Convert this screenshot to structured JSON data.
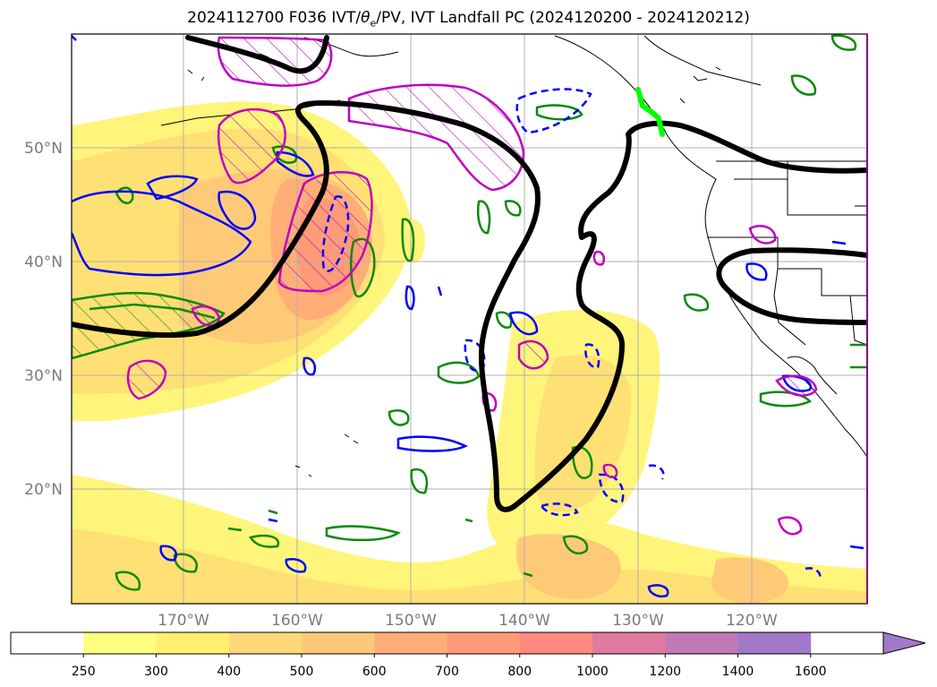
{
  "title_main": "2024112700 F036 IVT/",
  "title_theta": "θ",
  "title_theta_sub": "e",
  "title_rest": "/PV, IVT Landfall PC (2024120200 - 2024120212)",
  "latitudes": [
    "50°N",
    "40°N",
    "30°N",
    "20°N"
  ],
  "longitudes": [
    "170°W",
    "160°W",
    "150°W",
    "140°W",
    "130°W",
    "120°W"
  ],
  "colorbar": {
    "ticks": [
      "250",
      "300",
      "400",
      "500",
      "600",
      "700",
      "800",
      "1000",
      "1200",
      "1400",
      "1600"
    ],
    "colors": [
      "#ffffff",
      "#ffff80",
      "#fff070",
      "#ffd878",
      "#ffc878",
      "#ffae78",
      "#ff9b78",
      "#ff8a80",
      "#e07aa0",
      "#c07ab8",
      "#a07ac8"
    ],
    "extend": "max"
  },
  "contour_colors": {
    "theta_e": "#000000",
    "pv": "#c000c0",
    "ivt_convergence": "#0a8a0a",
    "vertical_motion": "#0000ff",
    "landfall": "#00ff00"
  }
}
